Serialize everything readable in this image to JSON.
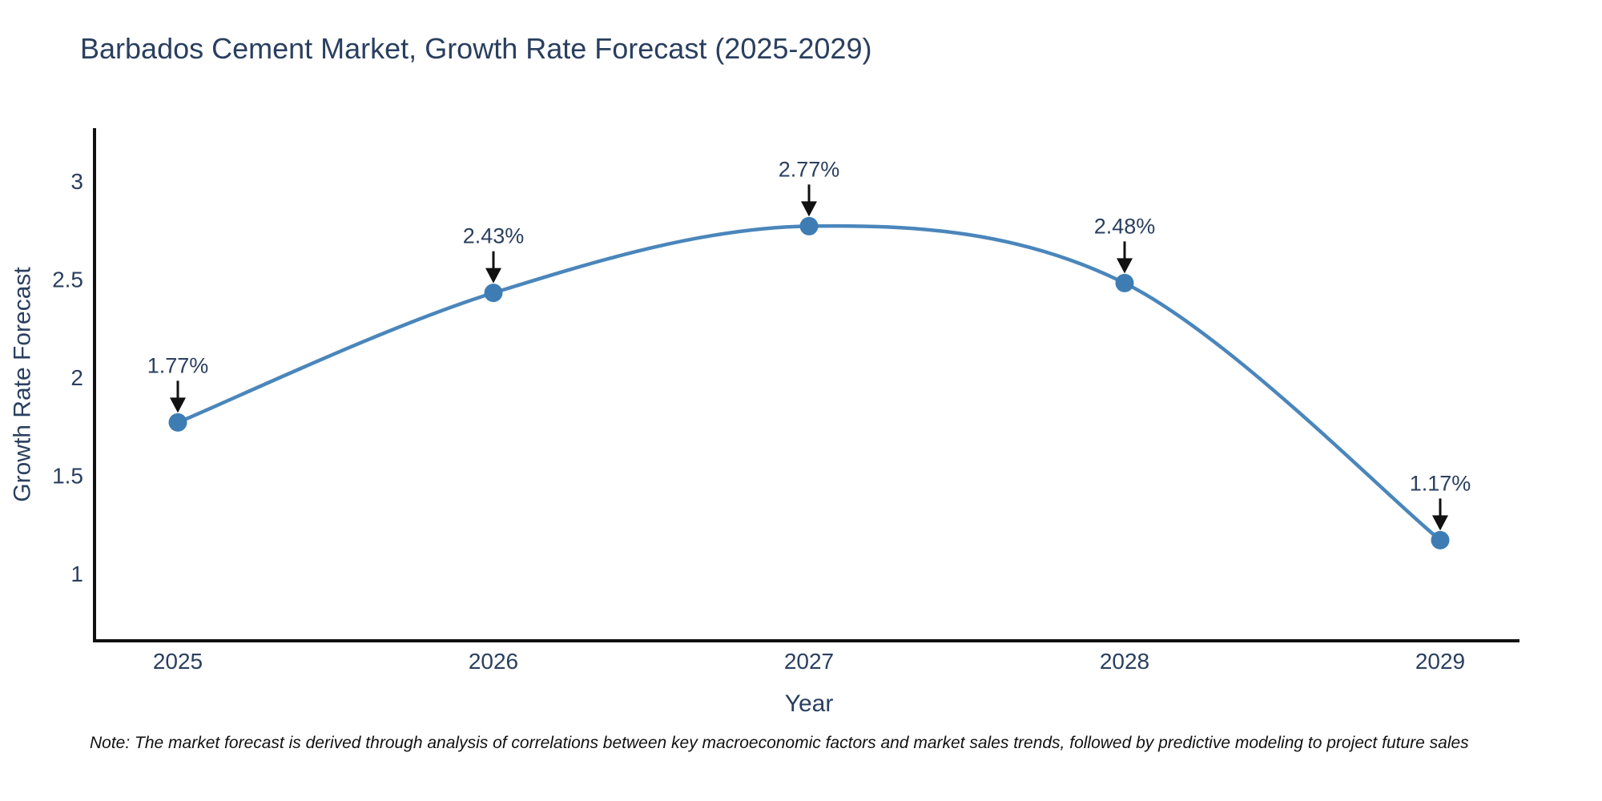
{
  "header": {
    "title": "Barbados Cement Market, Growth Rate Forecast (2025-2029)"
  },
  "footer": {
    "note": "Note: The market forecast is derived through analysis of correlations between key macroeconomic factors and market sales trends, followed by predictive modeling to project future sales"
  },
  "chart_data": {
    "type": "line",
    "title": "Barbados Cement Market, Growth Rate Forecast (2025-2029)",
    "x": [
      2025,
      2026,
      2027,
      2028,
      2029
    ],
    "xticks": [
      "2025",
      "2026",
      "2027",
      "2028",
      "2029"
    ],
    "series": [
      {
        "name": "Growth Rate Forecast",
        "values": [
          1.77,
          2.43,
          2.77,
          2.48,
          1.17
        ],
        "labels": [
          "1.77%",
          "2.43%",
          "2.77%",
          "2.48%",
          "1.17%"
        ]
      }
    ],
    "xlabel": "Year",
    "ylabel": "Growth Rate Forecast",
    "yticks": [
      1,
      1.5,
      2,
      2.5,
      3
    ],
    "ylim": [
      0.66,
      3.27
    ],
    "xlim": [
      2024.74,
      2029.25
    ],
    "grid": false,
    "legend_position": "none",
    "line_shape": "spline",
    "annotation_style": "value-label-above-point-with-down-arrow",
    "colors": {
      "line": "#4a86bb",
      "marker": "#3d7db4",
      "axis": "#111111",
      "arrow": "#111111",
      "text": "#2a3f5f",
      "note_text": "#111111",
      "background": "#ffffff"
    }
  }
}
